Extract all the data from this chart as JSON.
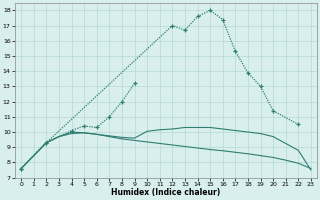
{
  "xlabel": "Humidex (Indice chaleur)",
  "xlim": [
    -0.5,
    23.5
  ],
  "ylim": [
    7,
    18.5
  ],
  "xticks": [
    0,
    1,
    2,
    3,
    4,
    5,
    6,
    7,
    8,
    9,
    10,
    11,
    12,
    13,
    14,
    15,
    16,
    17,
    18,
    19,
    20,
    21,
    22,
    23
  ],
  "yticks": [
    7,
    8,
    9,
    10,
    11,
    12,
    13,
    14,
    15,
    16,
    17,
    18
  ],
  "bg_color": "#d9efed",
  "line_color": "#2e7d72",
  "grid_color": "#b5d9d4",
  "curve1_x": [
    0,
    2,
    12,
    13,
    14,
    15,
    16,
    17,
    18,
    19,
    20,
    22
  ],
  "curve1_y": [
    7.6,
    9.3,
    17.0,
    16.7,
    17.6,
    18.0,
    17.4,
    15.3,
    13.9,
    13.0,
    11.4,
    10.5
  ],
  "curve2_x": [
    0,
    2,
    4,
    5,
    6,
    7,
    8,
    9
  ],
  "curve2_y": [
    7.6,
    9.3,
    10.1,
    10.4,
    10.3,
    11.0,
    12.0,
    13.2
  ],
  "curve3_x": [
    0,
    2,
    3,
    4,
    5,
    6,
    7,
    8,
    9,
    10,
    11,
    12,
    13,
    14,
    15,
    16,
    17,
    18,
    19,
    20,
    21,
    22,
    23
  ],
  "curve3_y": [
    7.6,
    9.3,
    9.7,
    10.0,
    9.95,
    9.85,
    9.7,
    9.55,
    9.45,
    9.35,
    9.25,
    9.15,
    9.05,
    8.95,
    8.85,
    8.77,
    8.67,
    8.57,
    8.45,
    8.33,
    8.15,
    7.95,
    7.6
  ],
  "curve4_x": [
    0,
    2,
    3,
    4,
    5,
    6,
    7,
    8,
    9,
    10,
    11,
    12,
    13,
    14,
    15,
    16,
    17,
    18,
    19,
    20,
    22,
    23
  ],
  "curve4_y": [
    7.6,
    9.3,
    9.7,
    9.9,
    9.95,
    9.85,
    9.75,
    9.65,
    9.6,
    10.05,
    10.15,
    10.2,
    10.3,
    10.3,
    10.3,
    10.2,
    10.1,
    10.0,
    9.9,
    9.7,
    8.8,
    7.5
  ]
}
